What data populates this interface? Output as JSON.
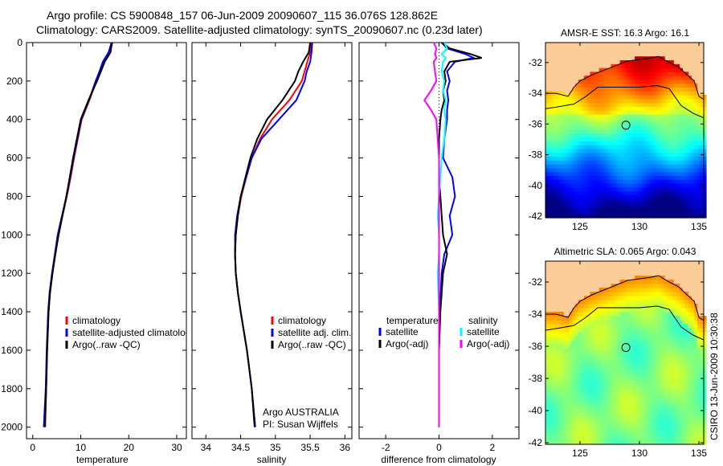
{
  "title_line1": "Argo profile: CS 5900848_157 06-Jun-2009 20090607_115 36.076S 128.862E",
  "title_line2": "Climatology: CARS2009. Satellite-adjusted climatology: synTS_20090607.nc (0.23d later)",
  "footer_vertical": "CSIRO 13-Jun-2009 10:30:38",
  "colors": {
    "climatology": "#ff0000",
    "satellite": "#0000ff",
    "argo": "#000000",
    "sal_satellite": "#00ffff",
    "sal_argo": "#ff00ff",
    "land": "#fccc99"
  },
  "chart_data": [
    {
      "type": "line",
      "id": "temperature",
      "xlabel": "temperature",
      "ylabel": "",
      "xlim": [
        -1.3,
        32
      ],
      "ylim": [
        2060,
        0
      ],
      "xticks": [
        "0",
        "10",
        "20",
        "30"
      ],
      "yticks": [
        "0",
        "200",
        "400",
        "600",
        "800",
        "1000",
        "1200",
        "1400",
        "1600",
        "1800",
        "2000"
      ],
      "depth": [
        0,
        50,
        100,
        150,
        200,
        300,
        400,
        500,
        600,
        700,
        800,
        900,
        1000,
        1100,
        1200,
        1300,
        1400,
        1600,
        1800,
        2000
      ],
      "series": [
        {
          "name": "climatology",
          "color_key": "climatology",
          "values": [
            16.6,
            16.0,
            14.8,
            14.0,
            13.2,
            11.8,
            10.2,
            9.4,
            8.6,
            7.9,
            7.1,
            6.2,
            5.3,
            4.7,
            4.1,
            3.6,
            3.3,
            3.0,
            2.8,
            2.6
          ]
        },
        {
          "name": "satellite-adjusted climatology",
          "color_key": "satellite",
          "values": [
            16.4,
            15.8,
            14.6,
            13.9,
            13.1,
            11.7,
            10.1,
            9.3,
            8.5,
            7.8,
            7.0,
            6.1,
            5.2,
            4.6,
            4.0,
            3.5,
            3.2,
            2.9,
            2.7,
            2.3
          ]
        },
        {
          "name": "Argo(..raw -QC)",
          "color_key": "argo",
          "values": [
            16.5,
            16.2,
            15.0,
            14.2,
            13.4,
            11.6,
            10.0,
            9.2,
            8.4,
            7.7,
            7.0,
            6.2,
            5.4,
            4.7,
            4.1,
            3.6,
            3.3,
            3.0,
            2.8,
            2.5
          ]
        }
      ],
      "legend": {
        "placement": "center-left",
        "items": [
          "climatology",
          "satellite-adjusted climatology",
          "Argo(..raw -QC)"
        ]
      }
    },
    {
      "type": "line",
      "id": "salinity",
      "xlabel": "salinity",
      "xlim": [
        33.8,
        36.1
      ],
      "ylim": [
        2060,
        0
      ],
      "xticks": [
        "34",
        "34.5",
        "35",
        "35.5",
        "36"
      ],
      "depth": [
        0,
        50,
        100,
        150,
        200,
        300,
        400,
        500,
        600,
        700,
        800,
        900,
        1000,
        1100,
        1200,
        1300,
        1400,
        1600,
        1800,
        2000
      ],
      "series": [
        {
          "name": "climatology",
          "color_key": "climatology",
          "values": [
            35.52,
            35.5,
            35.46,
            35.42,
            35.38,
            35.2,
            34.95,
            34.78,
            34.66,
            34.58,
            34.51,
            34.46,
            34.43,
            34.42,
            34.43,
            34.46,
            34.5,
            34.59,
            34.66,
            34.71
          ]
        },
        {
          "name": "satellite adj. clim.",
          "color_key": "satellite",
          "values": [
            35.53,
            35.52,
            35.5,
            35.45,
            35.42,
            35.3,
            35.05,
            34.8,
            34.66,
            34.58,
            34.5,
            34.45,
            34.42,
            34.42,
            34.43,
            34.46,
            34.5,
            34.59,
            34.66,
            34.71
          ]
        },
        {
          "name": "Argo(..raw -QC)",
          "color_key": "argo",
          "values": [
            35.5,
            35.48,
            35.4,
            35.33,
            35.28,
            35.1,
            34.88,
            34.74,
            34.64,
            34.57,
            34.5,
            34.46,
            34.43,
            34.42,
            34.43,
            34.46,
            34.5,
            34.59,
            34.66,
            34.7
          ]
        }
      ],
      "legend": {
        "placement": "center-right",
        "items": [
          "climatology",
          "satellite adj. clim.",
          "Argo(..raw -QC)"
        ]
      },
      "annotation_line1": "Argo AUSTRALIA",
      "annotation_line2": "PI: Susan Wijffels"
    },
    {
      "type": "line",
      "id": "difference",
      "xlabel": "difference from climatology",
      "xlim": [
        -3,
        3
      ],
      "ylim": [
        2060,
        0
      ],
      "xticks": [
        "-2",
        "0",
        "2"
      ],
      "depth": [
        0,
        30,
        60,
        80,
        100,
        150,
        200,
        250,
        300,
        350,
        400,
        500,
        600,
        700,
        800,
        900,
        1000,
        1100,
        1200,
        1400,
        1600,
        2000
      ],
      "series": [
        {
          "name": "temperature satellite",
          "color_key": "satellite",
          "values": [
            0.1,
            0.3,
            1.0,
            1.3,
            0.6,
            0.3,
            0.4,
            0.3,
            0.35,
            0.3,
            0.3,
            0.2,
            0.15,
            0.5,
            0.6,
            0.4,
            0.5,
            0.2,
            0.1,
            0.03,
            0.0,
            0.0
          ]
        },
        {
          "name": "temperature Argo(-adj)",
          "color_key": "argo",
          "values": [
            0.1,
            0.4,
            1.2,
            1.6,
            0.4,
            0.2,
            0.25,
            0.15,
            0.2,
            0.1,
            0.05,
            0.0,
            0.0,
            0.0,
            0.05,
            0.1,
            0.15,
            0.3,
            0.15,
            0.05,
            0.0,
            0.0
          ]
        },
        {
          "name": "salinity satellite",
          "color_key": "sal_satellite",
          "values": [
            0.2,
            0.3,
            0.1,
            0.25,
            0.15,
            0.1,
            0.2,
            0.15,
            0.25,
            0.2,
            0.25,
            0.2,
            0.1,
            0.05,
            0.0,
            -0.05,
            0.0,
            0.0,
            -0.05,
            0.0,
            0.0,
            0.0
          ]
        },
        {
          "name": "salinity Argo(-adj)",
          "color_key": "sal_argo",
          "values": [
            -0.2,
            -0.1,
            -0.15,
            -0.1,
            -0.2,
            -0.15,
            -0.1,
            -0.3,
            -0.55,
            -0.3,
            -0.1,
            -0.05,
            0.0,
            0.0,
            0.0,
            0.0,
            0.0,
            0.0,
            0.0,
            0.0,
            0.0,
            0.0
          ]
        }
      ],
      "legend": {
        "placement": "center",
        "temp_header": "temperature",
        "sal_header": "salinity",
        "items": [
          "satellite",
          "Argo(-adj)",
          "satellite",
          "Argo(-adj)"
        ]
      }
    },
    {
      "type": "heatmap",
      "id": "sst_map",
      "title": "AMSR-E SST: 16.3 Argo: 16.1",
      "xlim": [
        122.1,
        135.4
      ],
      "ylim": [
        -42.1,
        -30.7
      ],
      "xticks": [
        "125",
        "130",
        "135"
      ],
      "yticks": [
        "-32",
        "-34",
        "-36",
        "-38",
        "-40",
        "-42"
      ],
      "profile_location": {
        "lon": 128.862,
        "lat": -36.076
      }
    },
    {
      "type": "heatmap",
      "id": "sla_map",
      "title": "Altimetric SLA: 0.065 Argo: 0.043",
      "xlim": [
        122.1,
        135.4
      ],
      "ylim": [
        -42.1,
        -30.7
      ],
      "xticks": [
        "125",
        "130",
        "135"
      ],
      "yticks": [
        "-32",
        "-34",
        "-36",
        "-38",
        "-40",
        "-42"
      ],
      "profile_location": {
        "lon": 128.862,
        "lat": -36.076
      }
    }
  ]
}
